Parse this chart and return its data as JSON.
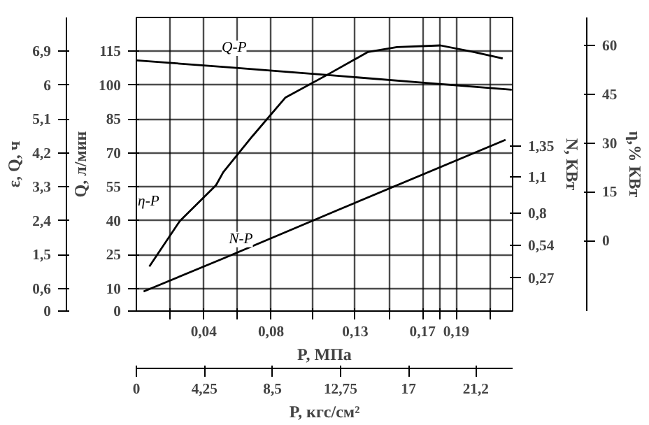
{
  "chart_data": {
    "type": "line",
    "xlabel": "P, МПа",
    "xlim": [
      0,
      0.2235
    ],
    "xticks": [
      {
        "value": 0.02,
        "label": null
      },
      {
        "value": 0.04,
        "label": "0,04"
      },
      {
        "value": 0.06,
        "label": null
      },
      {
        "value": 0.08,
        "label": "0,08"
      },
      {
        "value": 0.105,
        "label": null
      },
      {
        "value": 0.13,
        "label": "0,13"
      },
      {
        "value": 0.15,
        "label": null
      },
      {
        "value": 0.17,
        "label": "0,17"
      },
      {
        "value": 0.18,
        "label": null
      },
      {
        "value": 0.19,
        "label": "0,19"
      },
      {
        "value": 0.21,
        "label": null
      }
    ],
    "x2label": "P, кгс/см²",
    "x2lim": [
      0,
      23.5
    ],
    "x2ticks": [
      0,
      {
        "value": 4.25,
        "label": "4,25"
      },
      {
        "value": 8.5,
        "label": "8,5"
      },
      {
        "value": 12.75,
        "label": "12,75"
      },
      17,
      {
        "value": 21.2,
        "label": "21,2"
      }
    ],
    "ylabel": "Q, л/мин",
    "ylim": [
      0,
      130
    ],
    "yticks": [
      0,
      10,
      25,
      40,
      55,
      70,
      85,
      100,
      115
    ],
    "y2label": "N, КВт",
    "y2lim": [
      0,
      2.4
    ],
    "y2ticks": [
      {
        "value": 0.27,
        "label": "0,27"
      },
      {
        "value": 0.54,
        "label": "0,54"
      },
      {
        "value": 0.8,
        "label": "0,8"
      },
      {
        "value": 1.1,
        "label": "1,1"
      },
      {
        "value": 1.35,
        "label": "1,35"
      }
    ],
    "y3label": "η,% КВт",
    "y3lim": [
      -21.7,
      68.6
    ],
    "y3ticks": [
      0,
      15,
      30,
      45,
      60
    ],
    "annotations": [
      "ε, Q, ч",
      "0",
      "0,6",
      "1,5",
      "2,4",
      "3,3",
      "4,2",
      "5,1",
      "6",
      "6,9"
    ],
    "grid": true,
    "line_style": "solid",
    "series": [
      {
        "name": "Q-P",
        "color": "#000000",
        "x": [
          0,
          0.054,
          0.114,
          0.172,
          0.223
        ],
        "values": [
          111,
          108,
          104.5,
          101,
          98
        ]
      },
      {
        "name": "η-P",
        "color": "#000000",
        "axis": "y3",
        "x": [
          0.0077,
          0.0258,
          0.0473,
          0.0516,
          0.0688,
          0.0886,
          0.1135,
          0.1376,
          0.1548,
          0.1806,
          0.2004,
          0.2176
        ],
        "values": [
          -8,
          6,
          17,
          21,
          32,
          44,
          51,
          58,
          59.5,
          60,
          58,
          56
        ]
      },
      {
        "name": "N-P",
        "color": "#000000",
        "axis": "y2",
        "x": [
          0.0043,
          0.0516,
          0.1204,
          0.2193
        ],
        "values": [
          0.16,
          0.43,
          0.83,
          1.4
        ]
      }
    ]
  }
}
